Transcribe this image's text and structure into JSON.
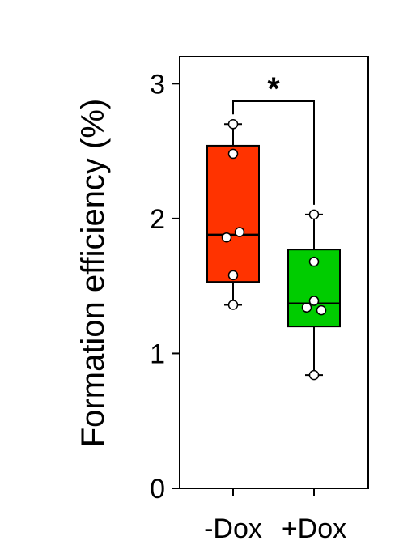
{
  "chart_data": {
    "type": "box",
    "ylabel": "Formation efficiency (%)",
    "ylim": [
      0,
      3.2
    ],
    "yticks": [
      0,
      1,
      2,
      3
    ],
    "categories": [
      "-Dox",
      "+Dox"
    ],
    "groups": [
      {
        "category": "-Dox",
        "color": "#ff3300",
        "whisker_low": 1.36,
        "q1": 1.53,
        "median": 1.88,
        "q3": 2.54,
        "whisker_high": 2.7,
        "points": [
          2.7,
          2.48,
          1.9,
          1.86,
          1.58,
          1.36
        ],
        "points_dx": [
          0,
          0,
          8,
          -8,
          0,
          0
        ]
      },
      {
        "category": "+Dox",
        "color": "#00cc00",
        "whisker_low": 0.84,
        "q1": 1.2,
        "median": 1.37,
        "q3": 1.77,
        "whisker_high": 2.03,
        "points": [
          2.03,
          1.68,
          1.39,
          1.34,
          1.32,
          0.84
        ],
        "points_dx": [
          0,
          0,
          0,
          -9,
          9,
          0
        ]
      }
    ],
    "significance": {
      "label": "*",
      "between": [
        "-Dox",
        "+Dox"
      ],
      "y": 2.87
    }
  }
}
